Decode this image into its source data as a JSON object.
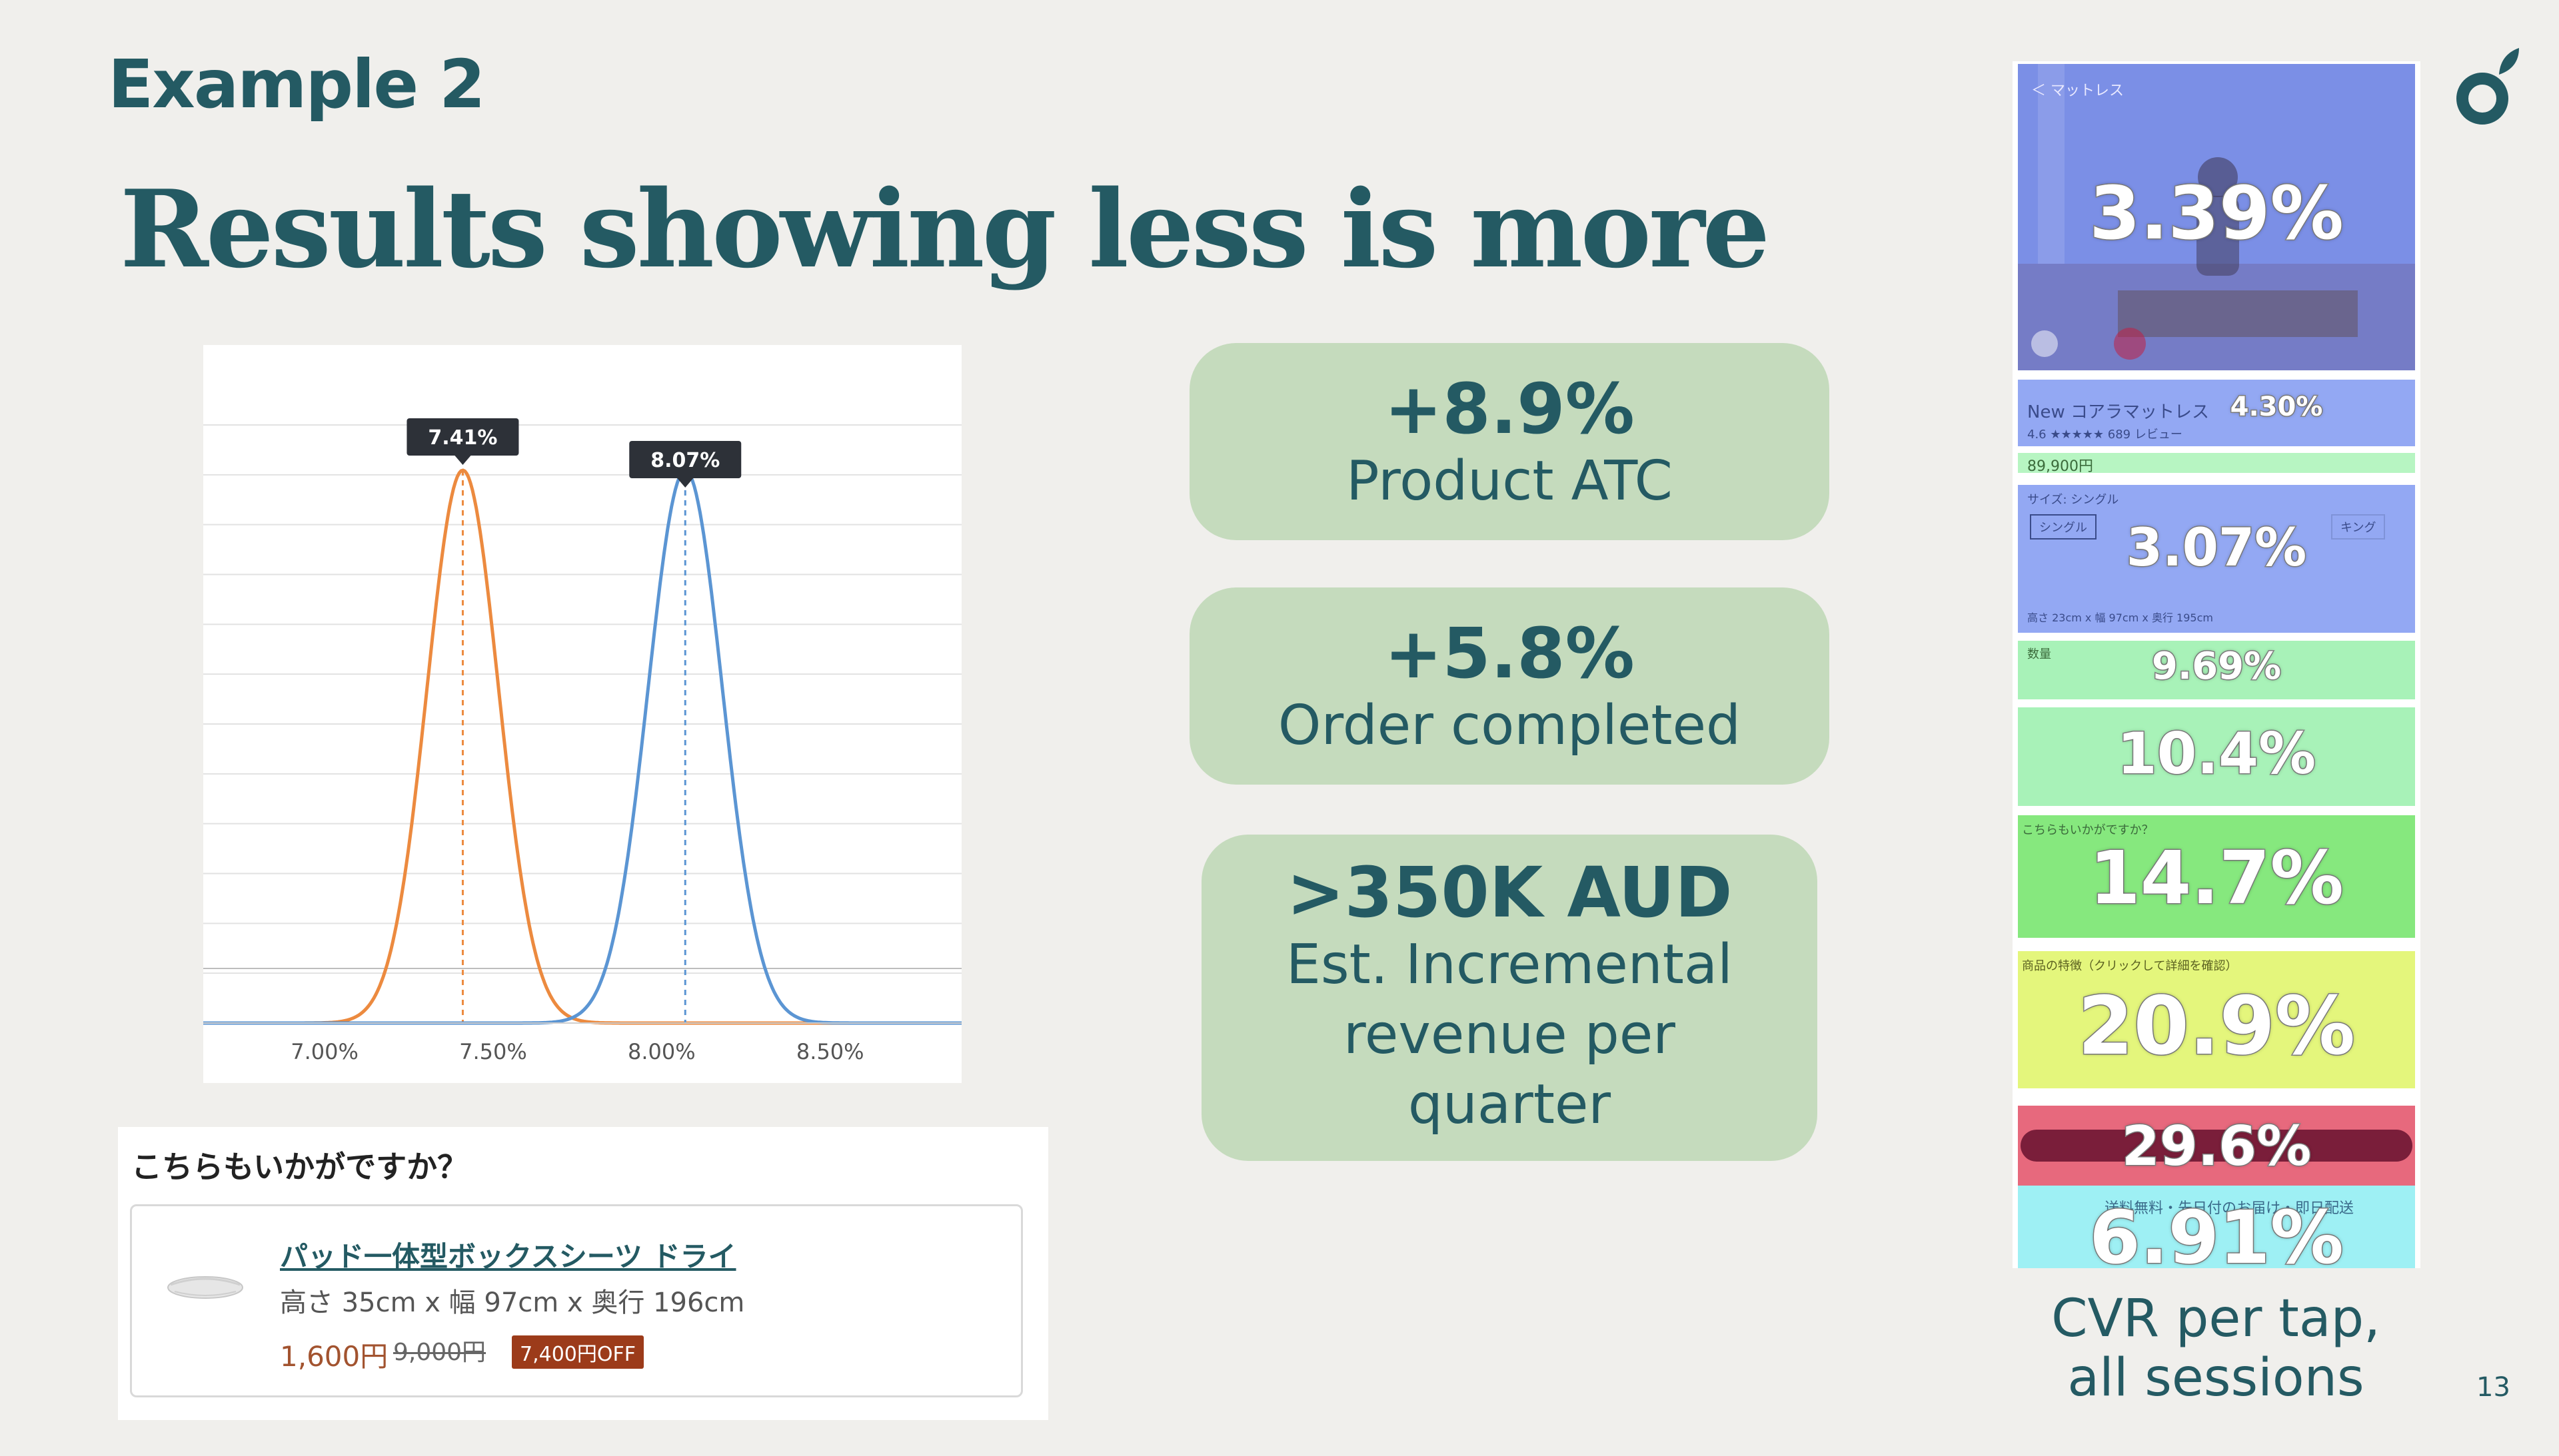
{
  "slide": {
    "eyebrow": "Example 2",
    "title": "Results showing less is more",
    "page_number": "13",
    "brand_color": "#245a63"
  },
  "chart_data": {
    "type": "line",
    "x": {
      "ticks": [
        7.0,
        7.5,
        8.0,
        8.5
      ],
      "tick_labels": [
        "7.00%",
        "7.50%",
        "8.00%",
        "8.50%"
      ],
      "range": [
        6.64,
        8.89
      ]
    },
    "series": [
      {
        "peak": 7.41,
        "peak_label": "7.41%",
        "sd": 0.106,
        "color": "#ec8a3f"
      },
      {
        "peak": 8.07,
        "peak_label": "8.07%",
        "sd": 0.11,
        "color": "#5b95d3"
      }
    ],
    "grid": true,
    "legend": "none"
  },
  "stats": [
    {
      "value": "+8.9%",
      "label": "Product ATC"
    },
    {
      "value": "+5.8%",
      "label": "Order completed"
    },
    {
      "value": ">350K AUD",
      "label_lines": [
        "Est. Incremental",
        "revenue per",
        "quarter"
      ]
    }
  ],
  "recommendation": {
    "heading": "こちらもいかがですか？",
    "product_name": "パッド一体型ボックスシーツ ドライ",
    "dimensions": "高さ 35cm x 幅 97cm x 奥行 196cm",
    "price": "1,600円",
    "original_price": "9,000円",
    "discount_badge": "7,400円OFF"
  },
  "heatmap": {
    "zones": [
      {
        "label": "3.39%",
        "color": "#7b8fe6"
      },
      {
        "label": "4.30%",
        "color": "#93a8f3"
      },
      {
        "label": "3.07%",
        "color": "#93a8f3"
      },
      {
        "label": "9.69%",
        "color": "#a8f2b8"
      },
      {
        "label": "10.4%",
        "color": "#a8f2b8"
      },
      {
        "label": "14.7%",
        "color": "#86e87e"
      },
      {
        "label": "20.9%",
        "color": "#e4f67c"
      },
      {
        "label": "29.6%",
        "color": "#e7697d"
      },
      {
        "label": "6.91%",
        "color": "#9ef0f4"
      }
    ],
    "ui_texts": {
      "back": "＜ マットレス",
      "product_title": "New コアラマットレス",
      "rating": "4.6 ★★★★★ 689 レビュー",
      "price": "89,900円",
      "size_label": "サイズ: シングル",
      "size_single": "シングル",
      "size_king": "キング",
      "size_dims": "高さ 23cm x 幅 97cm x 奥行 195cm",
      "qty_label": "数量",
      "rec_heading": "こちらもいかがですか？",
      "features_heading": "商品の特徴（クリックして詳細を確認）",
      "shipping": "送料無料・先日付のお届け・即日配送"
    }
  },
  "caption": {
    "line1": "CVR per tap,",
    "line2": "all sessions"
  }
}
